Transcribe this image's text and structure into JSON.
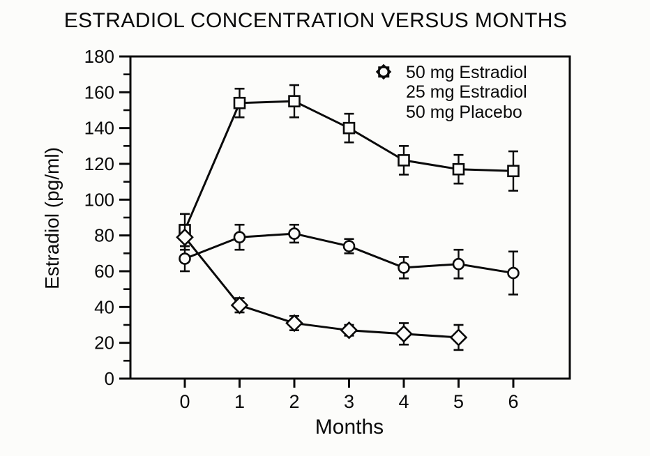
{
  "colors": {
    "ink": "#0a0a0a",
    "paper": "#fcfcfa"
  },
  "chart_data": {
    "type": "line",
    "title": "ESTRADIOL CONCENTRATION VERSUS MONTHS",
    "xlabel": "Months",
    "ylabel": "Estradiol (pg/ml)",
    "ylim": [
      0,
      180
    ],
    "y_major_ticks": [
      0,
      20,
      40,
      60,
      80,
      100,
      120,
      140,
      160,
      180
    ],
    "y_minor_ticks": [
      10,
      30,
      50,
      70,
      90,
      110,
      130,
      150,
      170
    ],
    "x_ticks": [
      0,
      1,
      2,
      3,
      4,
      5,
      6
    ],
    "grid": false,
    "legend_position": "top-right-inside",
    "series": [
      {
        "name": "50 mg Estradiol",
        "marker": "square",
        "x": [
          0,
          1,
          2,
          3,
          4,
          5,
          6
        ],
        "values": [
          83,
          154,
          155,
          140,
          122,
          117,
          116
        ],
        "errors": [
          9,
          8,
          9,
          8,
          8,
          8,
          11
        ]
      },
      {
        "name": "25 mg Estradiol",
        "marker": "circle",
        "x": [
          0,
          1,
          2,
          3,
          4,
          5,
          6
        ],
        "values": [
          67,
          79,
          81,
          74,
          62,
          64,
          59
        ],
        "errors": [
          7,
          7,
          5,
          4,
          6,
          8,
          12
        ]
      },
      {
        "name": "50 mg Placebo",
        "marker": "diamond",
        "x": [
          0,
          1,
          2,
          3,
          4,
          5
        ],
        "values": [
          79,
          41,
          31,
          27,
          25,
          23
        ],
        "errors": [
          7,
          4,
          4,
          3,
          6,
          7
        ]
      }
    ]
  }
}
